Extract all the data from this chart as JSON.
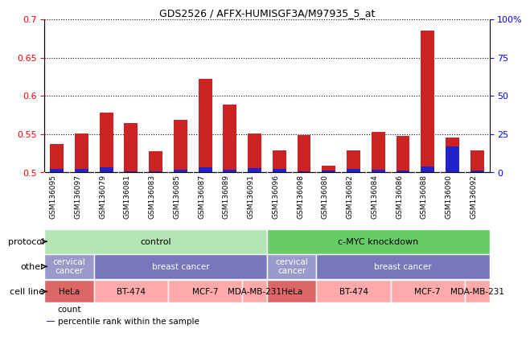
{
  "title": "GDS2526 / AFFX-HUMISGF3A/M97935_5_at",
  "samples": [
    "GSM136095",
    "GSM136097",
    "GSM136079",
    "GSM136081",
    "GSM136083",
    "GSM136085",
    "GSM136087",
    "GSM136089",
    "GSM136091",
    "GSM136096",
    "GSM136098",
    "GSM136080",
    "GSM136082",
    "GSM136084",
    "GSM136086",
    "GSM136088",
    "GSM136090",
    "GSM136092"
  ],
  "red_values": [
    0.537,
    0.551,
    0.578,
    0.565,
    0.528,
    0.569,
    0.622,
    0.589,
    0.551,
    0.529,
    0.549,
    0.509,
    0.529,
    0.553,
    0.548,
    0.685,
    0.546,
    0.529
  ],
  "blue_values": [
    0.505,
    0.505,
    0.507,
    0.502,
    0.501,
    0.504,
    0.507,
    0.504,
    0.506,
    0.505,
    0.502,
    0.503,
    0.505,
    0.504,
    0.503,
    0.508,
    0.534,
    0.503
  ],
  "ylim_left": [
    0.5,
    0.7
  ],
  "ylim_right": [
    0,
    100
  ],
  "yticks_left": [
    0.5,
    0.55,
    0.6,
    0.65,
    0.7
  ],
  "yticks_right": [
    0,
    25,
    50,
    75,
    100
  ],
  "ytick_labels_right": [
    "0",
    "25",
    "50",
    "75",
    "100%"
  ],
  "ytick_labels_left": [
    "0.5",
    "0.55",
    "0.6",
    "0.65",
    "0.7"
  ],
  "protocol_groups": [
    {
      "label": "control",
      "start": 0,
      "end": 9,
      "color": "#b3e6b3"
    },
    {
      "label": "c-MYC knockdown",
      "start": 9,
      "end": 18,
      "color": "#66cc66"
    }
  ],
  "other_groups": [
    {
      "label": "cervical\ncancer",
      "start": 0,
      "end": 2,
      "color": "#9999cc"
    },
    {
      "label": "breast cancer",
      "start": 2,
      "end": 9,
      "color": "#7777bb"
    },
    {
      "label": "cervical\ncancer",
      "start": 9,
      "end": 11,
      "color": "#9999cc"
    },
    {
      "label": "breast cancer",
      "start": 11,
      "end": 18,
      "color": "#7777bb"
    }
  ],
  "cell_line_groups": [
    {
      "label": "HeLa",
      "start": 0,
      "end": 2,
      "color": "#dd6666"
    },
    {
      "label": "BT-474",
      "start": 2,
      "end": 5,
      "color": "#ffaaaa"
    },
    {
      "label": "MCF-7",
      "start": 5,
      "end": 8,
      "color": "#ffaaaa"
    },
    {
      "label": "MDA-MB-231",
      "start": 8,
      "end": 9,
      "color": "#ffaaaa"
    },
    {
      "label": "HeLa",
      "start": 9,
      "end": 11,
      "color": "#dd6666"
    },
    {
      "label": "BT-474",
      "start": 11,
      "end": 14,
      "color": "#ffaaaa"
    },
    {
      "label": "MCF-7",
      "start": 14,
      "end": 17,
      "color": "#ffaaaa"
    },
    {
      "label": "MDA-MB-231",
      "start": 17,
      "end": 18,
      "color": "#ffaaaa"
    }
  ],
  "bar_width": 0.55,
  "red_color": "#cc2222",
  "blue_color": "#2222cc",
  "xtick_bg_color": "#cccccc",
  "row_labels": [
    "protocol",
    "other",
    "cell line"
  ],
  "legend_items": [
    {
      "color": "#cc2222",
      "label": "count"
    },
    {
      "color": "#2222cc",
      "label": "percentile rank within the sample"
    }
  ]
}
